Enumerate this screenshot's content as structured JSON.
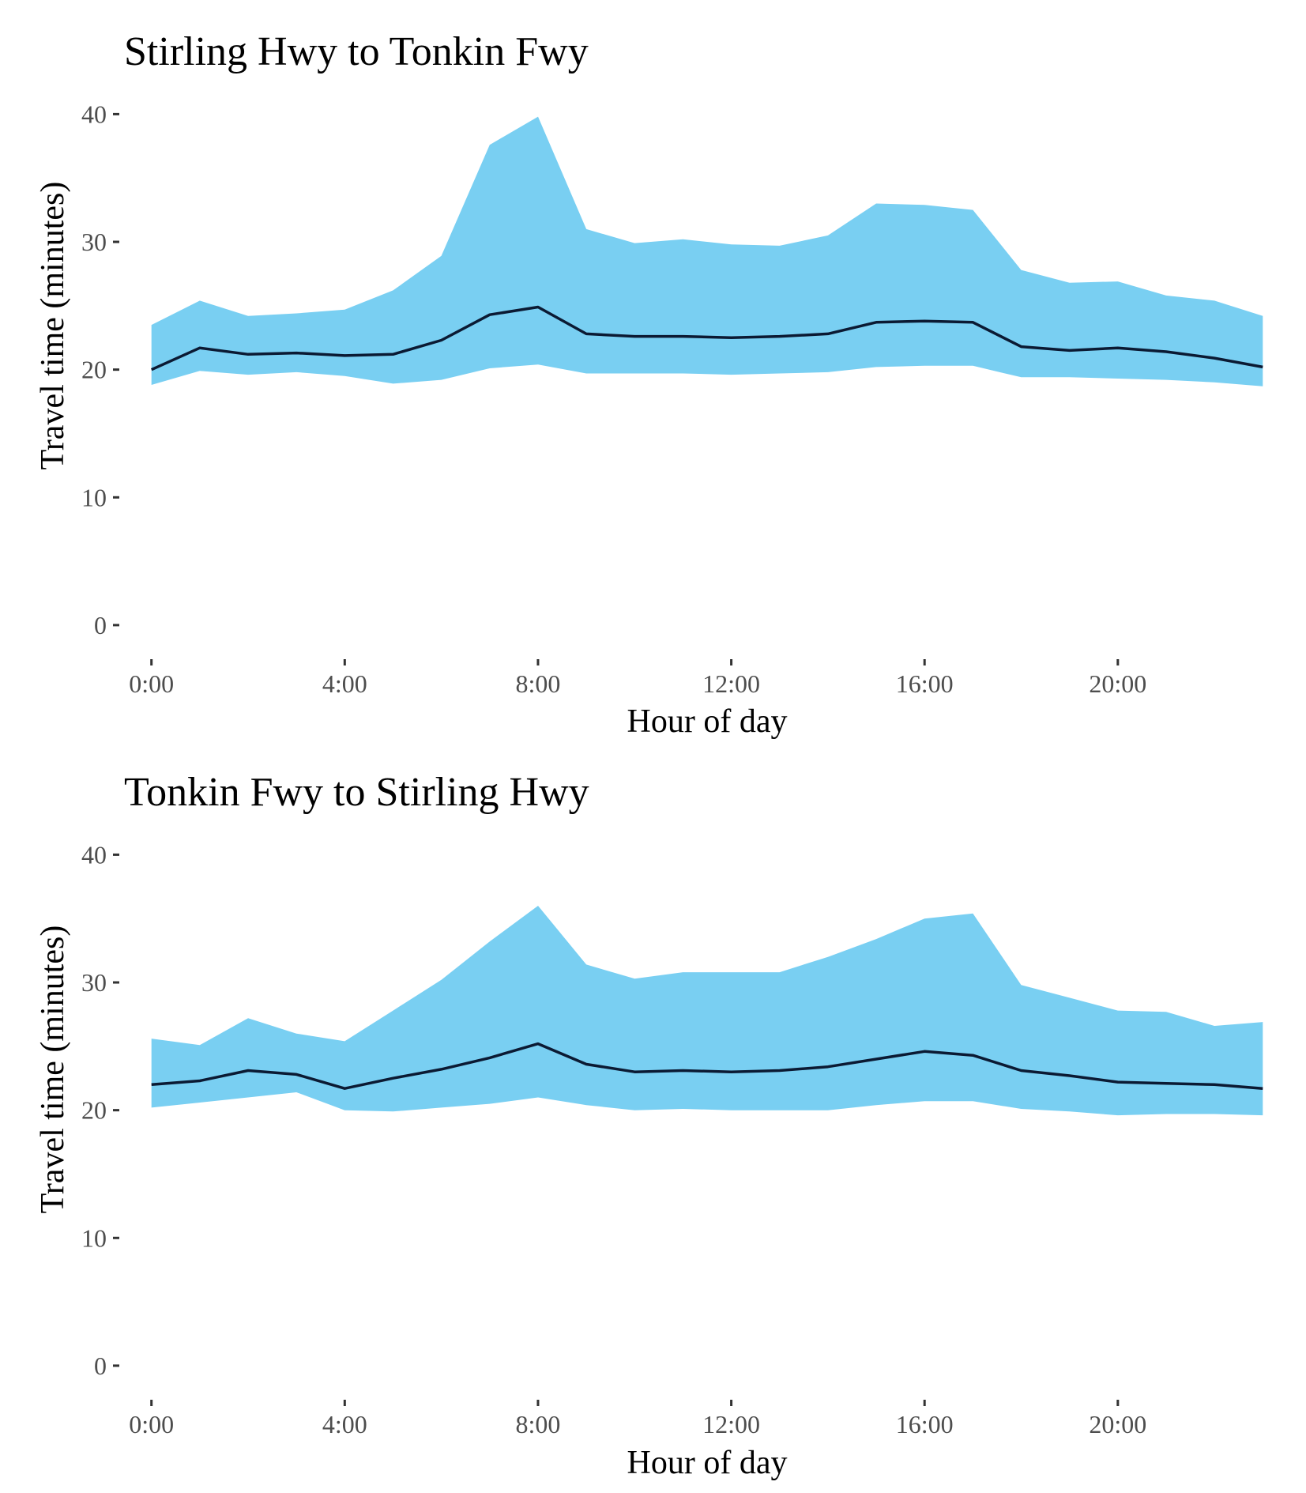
{
  "colors": {
    "band": "#79cff2",
    "line": "#0b1a33"
  },
  "chart_data": [
    {
      "type": "area",
      "title": "Stirling Hwy to Tonkin Fwy",
      "xlabel": "Hour of day",
      "ylabel": "Travel time (minutes)",
      "x": [
        0,
        1,
        2,
        3,
        4,
        5,
        6,
        7,
        8,
        9,
        10,
        11,
        12,
        13,
        14,
        15,
        16,
        17,
        18,
        19,
        20,
        21,
        22,
        23
      ],
      "xticks": [
        0,
        4,
        8,
        12,
        16,
        20
      ],
      "xtick_labels": [
        "0:00",
        "4:00",
        "8:00",
        "12:00",
        "16:00",
        "20:00"
      ],
      "xlim": [
        -0.6,
        23.6
      ],
      "yticks": [
        0,
        10,
        20,
        30,
        40
      ],
      "ytick_labels": [
        "0",
        "10",
        "20",
        "30",
        "40"
      ],
      "ylim": [
        -1.8,
        41.2
      ],
      "grid": false,
      "legend": "none",
      "series": [
        {
          "role": "median",
          "values": [
            20.0,
            21.7,
            21.2,
            21.3,
            21.1,
            21.2,
            22.3,
            24.3,
            24.9,
            22.8,
            22.6,
            22.6,
            22.5,
            22.6,
            22.8,
            23.7,
            23.8,
            23.7,
            21.8,
            21.5,
            21.7,
            21.4,
            20.9,
            20.2
          ]
        },
        {
          "role": "upper",
          "values": [
            23.5,
            25.4,
            24.2,
            24.4,
            24.7,
            26.2,
            28.9,
            37.6,
            39.8,
            31.0,
            29.9,
            30.2,
            29.8,
            29.7,
            30.5,
            33.0,
            32.9,
            32.5,
            27.8,
            26.8,
            26.9,
            25.8,
            25.4,
            24.2
          ]
        },
        {
          "role": "lower",
          "values": [
            18.8,
            19.9,
            19.6,
            19.8,
            19.5,
            18.9,
            19.2,
            20.1,
            20.4,
            19.7,
            19.7,
            19.7,
            19.6,
            19.7,
            19.8,
            20.2,
            20.3,
            20.3,
            19.4,
            19.4,
            19.3,
            19.2,
            19.0,
            18.7
          ]
        }
      ]
    },
    {
      "type": "area",
      "title": "Tonkin Fwy to Stirling Hwy",
      "xlabel": "Hour of day",
      "ylabel": "Travel time (minutes)",
      "x": [
        0,
        1,
        2,
        3,
        4,
        5,
        6,
        7,
        8,
        9,
        10,
        11,
        12,
        13,
        14,
        15,
        16,
        17,
        18,
        19,
        20,
        21,
        22,
        23
      ],
      "xticks": [
        0,
        4,
        8,
        12,
        16,
        20
      ],
      "xtick_labels": [
        "0:00",
        "4:00",
        "8:00",
        "12:00",
        "16:00",
        "20:00"
      ],
      "xlim": [
        -0.6,
        23.6
      ],
      "yticks": [
        0,
        10,
        20,
        30,
        40
      ],
      "ytick_labels": [
        "0",
        "10",
        "20",
        "30",
        "40"
      ],
      "ylim": [
        -1.8,
        41.2
      ],
      "grid": false,
      "legend": "none",
      "series": [
        {
          "role": "median",
          "values": [
            22.0,
            22.3,
            23.1,
            22.8,
            21.7,
            22.5,
            23.2,
            24.1,
            25.2,
            23.6,
            23.0,
            23.1,
            23.0,
            23.1,
            23.4,
            24.0,
            24.6,
            24.3,
            23.1,
            22.7,
            22.2,
            22.1,
            22.0,
            21.7
          ]
        },
        {
          "role": "upper",
          "values": [
            25.6,
            25.1,
            27.2,
            26.0,
            25.4,
            27.8,
            30.2,
            33.2,
            36.0,
            31.4,
            30.3,
            30.8,
            30.8,
            30.8,
            32.0,
            33.4,
            35.0,
            35.4,
            29.8,
            28.8,
            27.8,
            27.7,
            26.6,
            26.9
          ]
        },
        {
          "role": "lower",
          "values": [
            20.2,
            20.6,
            21.0,
            21.4,
            20.0,
            19.9,
            20.2,
            20.5,
            21.0,
            20.4,
            20.0,
            20.1,
            20.0,
            20.0,
            20.0,
            20.4,
            20.7,
            20.7,
            20.1,
            19.9,
            19.6,
            19.7,
            19.7,
            19.6
          ]
        }
      ]
    }
  ]
}
